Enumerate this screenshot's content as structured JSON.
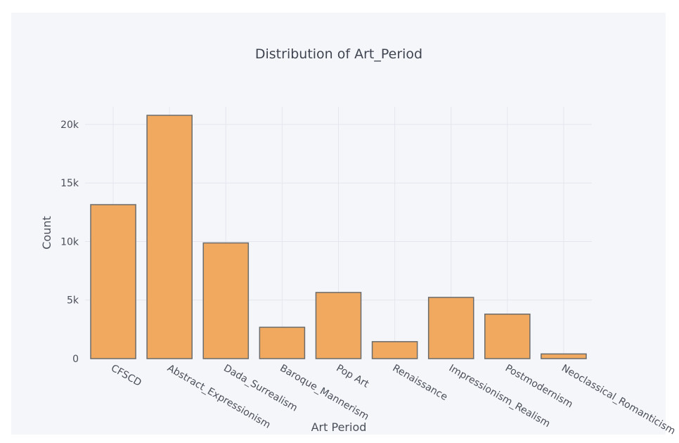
{
  "chart_data": {
    "type": "bar",
    "title": "Distribution of Art_Period",
    "xlabel": "Art Period",
    "ylabel": "Count",
    "categories": [
      "CFSCD",
      "Abstract_Expressionism",
      "Dada_Surrealism",
      "Baroque_Mannerism",
      "Pop Art",
      "Renaissance",
      "Impressionism_Realism",
      "Postmodernism",
      "Neoclassical_Romanticism"
    ],
    "values": [
      13150,
      20780,
      9880,
      2680,
      5650,
      1450,
      5230,
      3800,
      400
    ],
    "ylim": [
      0,
      21500
    ],
    "yticks": [
      0,
      5000,
      10000,
      15000,
      20000
    ],
    "ytick_labels": [
      "0",
      "5k",
      "10k",
      "15k",
      "20k"
    ],
    "grid": true,
    "colors": {
      "bar_fill": "#f0a95f",
      "bar_edge": "#6b6b6b",
      "plot_bg": "#f5f6fa",
      "grid": "#e4e6ee"
    }
  }
}
